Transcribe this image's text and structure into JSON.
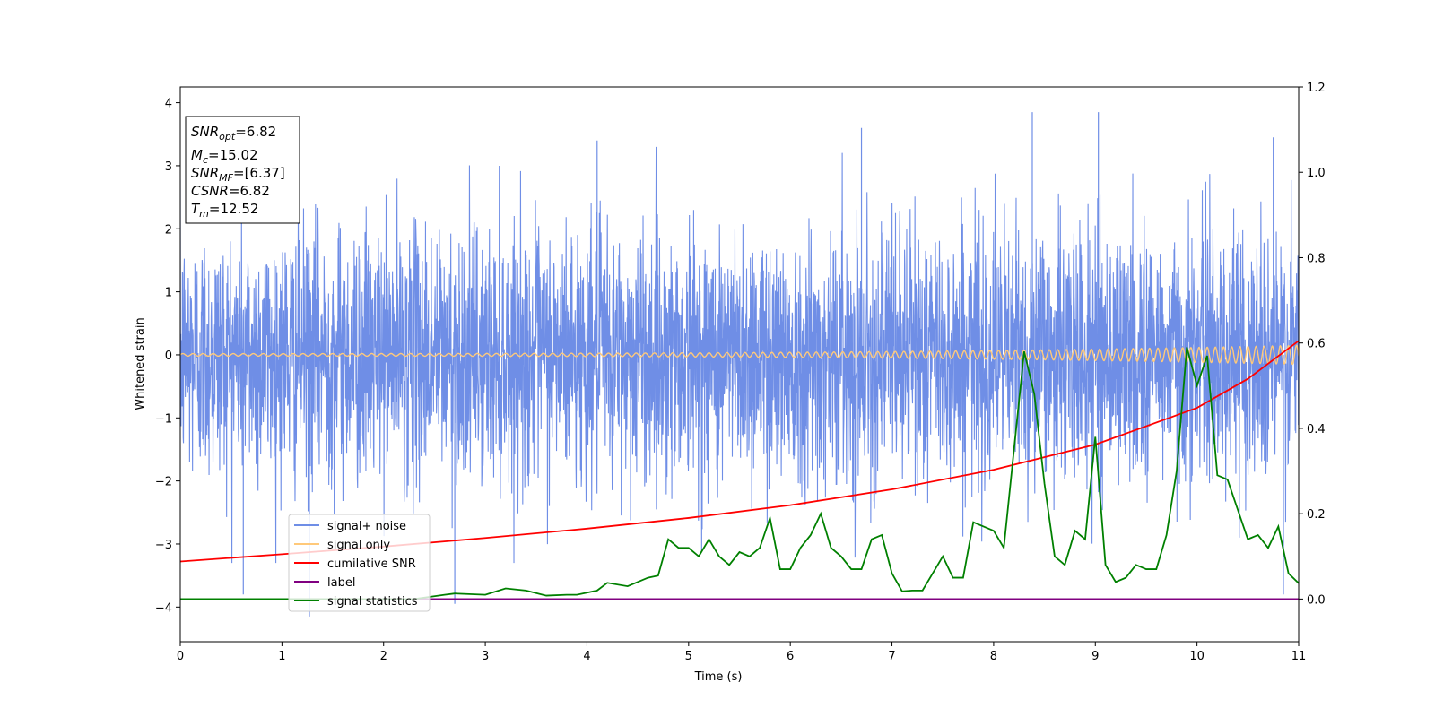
{
  "chart_data": {
    "type": "line",
    "xlabel": "Time (s)",
    "ylabel": "Whitened strain",
    "xlim": [
      0,
      11
    ],
    "ylim": [
      -4.55,
      4.25
    ],
    "y2lim": [
      -0.1,
      1.2
    ],
    "grid": false,
    "x_ticks": [
      "0",
      "1",
      "2",
      "3",
      "4",
      "5",
      "6",
      "7",
      "8",
      "9",
      "10",
      "11"
    ],
    "y_ticks": [
      {
        "v": 4,
        "label": "4"
      },
      {
        "v": 3,
        "label": "3"
      },
      {
        "v": 2,
        "label": "2"
      },
      {
        "v": 1,
        "label": "1"
      },
      {
        "v": 0,
        "label": "0"
      },
      {
        "v": -1,
        "label": "−1"
      },
      {
        "v": -2,
        "label": "−2"
      },
      {
        "v": -3,
        "label": "−3"
      },
      {
        "v": -4,
        "label": "−4"
      }
    ],
    "y2_ticks": [
      {
        "v": 0.0,
        "label": "0.0"
      },
      {
        "v": 0.2,
        "label": "0.2"
      },
      {
        "v": 0.4,
        "label": "0.4"
      },
      {
        "v": 0.6,
        "label": "0.6"
      },
      {
        "v": 0.8,
        "label": "0.8"
      },
      {
        "v": 1.0,
        "label": "1.0"
      },
      {
        "v": 1.2,
        "label": "1.2"
      }
    ],
    "annotation": {
      "lines": [
        {
          "sym": "SNR",
          "sub": "opt",
          "italic": true,
          "value": "=6.82"
        },
        {
          "sym": "M",
          "sub": "c",
          "italic": true,
          "value": "=15.02"
        },
        {
          "sym": "SNR",
          "sub": "MF",
          "italic": true,
          "value": "=[6.37]"
        },
        {
          "sym": "CSNR",
          "sub": "",
          "italic": true,
          "value": "=6.82"
        },
        {
          "sym": "T",
          "sub": "m",
          "italic": true,
          "value": "=12.52"
        }
      ]
    },
    "legend_position": "lower-left",
    "legend": [
      {
        "label": "signal+ noise",
        "color": "#6f8ee6"
      },
      {
        "label": "signal only",
        "color": "#ffc97a"
      },
      {
        "label": "cumilative SNR",
        "color": "#ff0000"
      },
      {
        "label": "label",
        "color": "#800080"
      },
      {
        "label": "signal statistics",
        "color": "#008000"
      }
    ],
    "series": [
      {
        "name": "signal+ noise",
        "color": "#6f8ee6",
        "axis": "left",
        "note": "dense whitened noise, roughly Gaussian with std ~1 over 0–11 s",
        "std": 1.0,
        "peaks": [
          {
            "x": 0.62,
            "y": -3.8
          },
          {
            "x": 1.27,
            "y": -4.15
          },
          {
            "x": 2.7,
            "y": -3.95
          },
          {
            "x": 4.1,
            "y": 3.4
          },
          {
            "x": 6.7,
            "y": 3.6
          },
          {
            "x": 8.38,
            "y": 3.85
          },
          {
            "x": 9.03,
            "y": 3.85
          },
          {
            "x": 10.75,
            "y": 3.45
          },
          {
            "x": 10.85,
            "y": -3.8
          }
        ]
      },
      {
        "name": "signal only",
        "color": "#ffc97a",
        "axis": "left",
        "note": "chirp with amplitude growing from ~0.02 to ~0.15 near t=11"
      },
      {
        "name": "cumilative SNR",
        "color": "#ff0000",
        "axis": "right",
        "x": [
          0,
          1,
          2,
          3,
          4,
          5,
          6,
          7,
          8,
          9,
          10,
          10.5,
          11
        ],
        "y": [
          0.088,
          0.105,
          0.123,
          0.143,
          0.165,
          0.19,
          0.22,
          0.257,
          0.303,
          0.362,
          0.448,
          0.516,
          0.605
        ]
      },
      {
        "name": "label",
        "color": "#800080",
        "axis": "right",
        "x": [
          0,
          11
        ],
        "y": [
          0.0,
          0.0
        ]
      },
      {
        "name": "signal statistics",
        "color": "#008000",
        "axis": "right",
        "x": [
          0,
          0.5,
          1,
          1.5,
          2,
          2.3,
          2.6,
          2.7,
          3,
          3.2,
          3.4,
          3.6,
          3.8,
          3.9,
          4.1,
          4.2,
          4.4,
          4.6,
          4.7,
          4.8,
          4.9,
          5,
          5.1,
          5.2,
          5.3,
          5.4,
          5.5,
          5.6,
          5.7,
          5.8,
          5.9,
          6,
          6.1,
          6.2,
          6.3,
          6.4,
          6.5,
          6.6,
          6.7,
          6.8,
          6.9,
          7,
          7.1,
          7.2,
          7.3,
          7.4,
          7.5,
          7.6,
          7.7,
          7.8,
          7.9,
          8,
          8.1,
          8.2,
          8.3,
          8.4,
          8.5,
          8.6,
          8.7,
          8.8,
          8.9,
          9,
          9.1,
          9.2,
          9.3,
          9.4,
          9.5,
          9.6,
          9.7,
          9.8,
          9.9,
          10,
          10.1,
          10.2,
          10.3,
          10.4,
          10.5,
          10.6,
          10.7,
          10.8,
          10.9,
          11
        ],
        "y": [
          0.0,
          0.0,
          0.0,
          0.0,
          0.0,
          0.0,
          0.01,
          0.013,
          0.01,
          0.025,
          0.02,
          0.008,
          0.01,
          0.01,
          0.02,
          0.038,
          0.03,
          0.05,
          0.055,
          0.14,
          0.12,
          0.12,
          0.1,
          0.14,
          0.1,
          0.08,
          0.11,
          0.1,
          0.12,
          0.19,
          0.07,
          0.07,
          0.12,
          0.15,
          0.2,
          0.12,
          0.1,
          0.07,
          0.07,
          0.14,
          0.15,
          0.06,
          0.018,
          0.02,
          0.02,
          0.06,
          0.1,
          0.05,
          0.05,
          0.18,
          0.17,
          0.16,
          0.12,
          0.35,
          0.58,
          0.48,
          0.27,
          0.1,
          0.08,
          0.16,
          0.14,
          0.38,
          0.08,
          0.04,
          0.05,
          0.08,
          0.07,
          0.07,
          0.15,
          0.3,
          0.59,
          0.5,
          0.57,
          0.29,
          0.28,
          0.21,
          0.14,
          0.15,
          0.12,
          0.17,
          0.06,
          0.037
        ]
      }
    ]
  }
}
